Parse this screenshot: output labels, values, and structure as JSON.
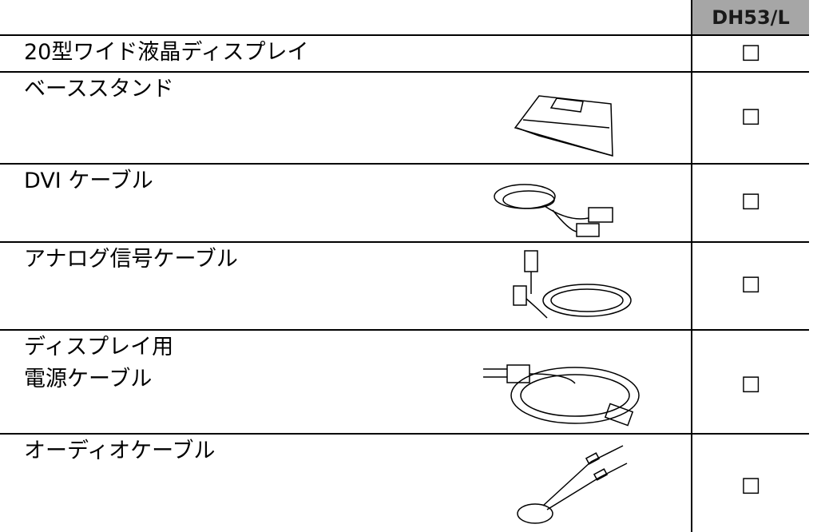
{
  "header": {
    "model": "DH53/L"
  },
  "table": {
    "rows": [
      {
        "item": [
          "20型ワイド液晶ディスプレイ"
        ],
        "check": "□"
      },
      {
        "item": [
          "ベーススタンド"
        ],
        "check": "□"
      },
      {
        "item": [
          "DVI ケーブル"
        ],
        "check": "□"
      },
      {
        "item": [
          "アナログ信号ケーブル"
        ],
        "check": "□"
      },
      {
        "item": [
          "ディスプレイ用",
          "電源ケーブル"
        ],
        "check": "□"
      },
      {
        "item": [
          "オーディオケーブル"
        ],
        "check": "□"
      }
    ]
  }
}
